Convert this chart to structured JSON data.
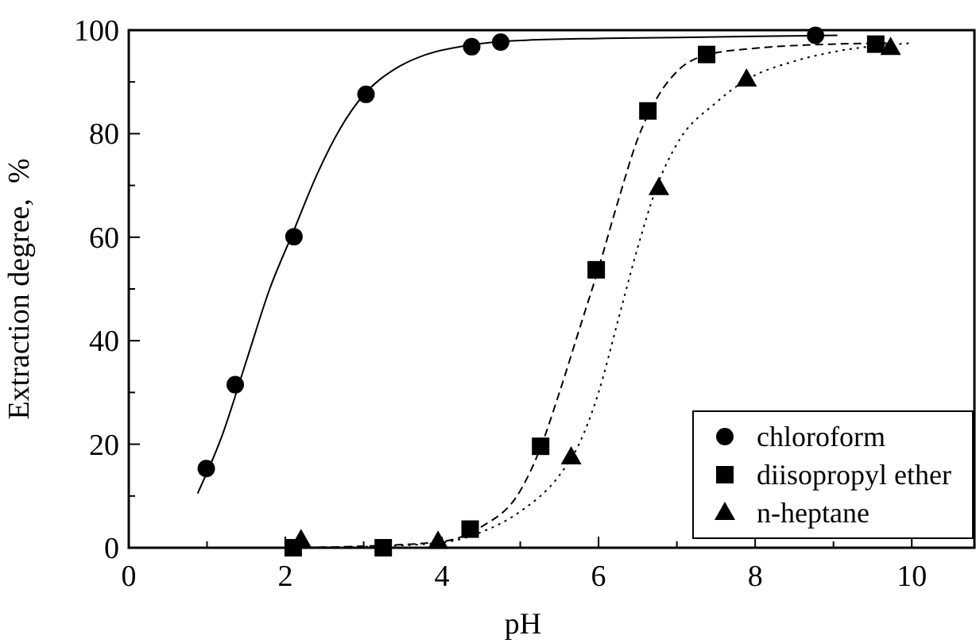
{
  "chart_data": {
    "type": "scatter",
    "xlabel": "pH",
    "ylabel": "Extraction degree,  %",
    "xlim": [
      0,
      10.8
    ],
    "ylim": [
      0,
      100
    ],
    "xticks": [
      0,
      {
        "value": 1,
        "label": null
      },
      2,
      {
        "value": 3,
        "label": null
      },
      4,
      {
        "value": 5,
        "label": null
      },
      6,
      {
        "value": 7,
        "label": null
      },
      8,
      {
        "value": 9,
        "label": null
      },
      10
    ],
    "yticks": [
      0,
      {
        "value": 10,
        "label": null
      },
      20,
      {
        "value": 30,
        "label": null
      },
      40,
      {
        "value": 50,
        "label": null
      },
      60,
      {
        "value": 70,
        "label": null
      },
      80,
      {
        "value": 90,
        "label": null
      },
      100
    ],
    "grid": false,
    "legend": "bottom right",
    "series": [
      {
        "name": "chloroform",
        "color": "#000000",
        "marker": "circle",
        "x": [
          0.99,
          1.36,
          2.11,
          3.03,
          4.38,
          4.75,
          8.77
        ],
        "values": [
          15.3,
          31.5,
          60.1,
          87.6,
          96.8,
          97.7,
          99.0
        ]
      },
      {
        "name": "diisopropyl ether",
        "color": "#000000",
        "marker": "square",
        "x": [
          2.1,
          3.25,
          4.36,
          5.26,
          5.97,
          6.63,
          7.38,
          9.54
        ],
        "values": [
          0,
          0,
          3.6,
          19.6,
          53.7,
          84.4,
          95.3,
          97.3
        ]
      },
      {
        "name": "n-heptane",
        "color": "#000000",
        "marker": "triangle",
        "x": [
          2.2,
          3.95,
          5.65,
          6.77,
          7.89,
          9.73
        ],
        "values": [
          1.5,
          1.2,
          17.5,
          69.5,
          90.5,
          96.6
        ]
      },
      {
        "type": "line",
        "color": "#000000",
        "marker": "none",
        "line_style": "solid",
        "x": [
          0.88,
          1.2,
          1.5,
          1.8,
          2.1,
          2.4,
          2.7,
          3.0,
          3.4,
          3.8,
          4.3,
          5,
          6,
          7,
          8,
          9.05
        ],
        "values": [
          10.5,
          22,
          36,
          50,
          61,
          72,
          81,
          87.5,
          92.5,
          95.3,
          97,
          98,
          98.4,
          98.6,
          98.8,
          99
        ]
      },
      {
        "type": "line",
        "color": "#000000",
        "marker": "none",
        "line_style": "dashed",
        "x": [
          2.1,
          3,
          4,
          4.5,
          5,
          5.25,
          5.5,
          5.75,
          6,
          6.25,
          6.5,
          6.75,
          7,
          7.4,
          8,
          9,
          9.7
        ],
        "values": [
          0,
          0.3,
          1.2,
          4,
          11,
          19,
          30,
          42,
          54,
          67,
          79,
          87,
          92,
          95.3,
          96.5,
          97.3,
          97.5
        ]
      },
      {
        "type": "line",
        "color": "#000000",
        "marker": "none",
        "line_style": "dotted",
        "x": [
          2.2,
          3,
          4,
          4.5,
          5,
          5.5,
          5.75,
          6,
          6.25,
          6.5,
          6.75,
          7,
          7.5,
          7.9,
          8.5,
          9,
          10
        ],
        "values": [
          0,
          0.2,
          1,
          3,
          7,
          14,
          20,
          30,
          44,
          58,
          70,
          78,
          86,
          90.5,
          94,
          95.8,
          97.5
        ]
      }
    ]
  }
}
